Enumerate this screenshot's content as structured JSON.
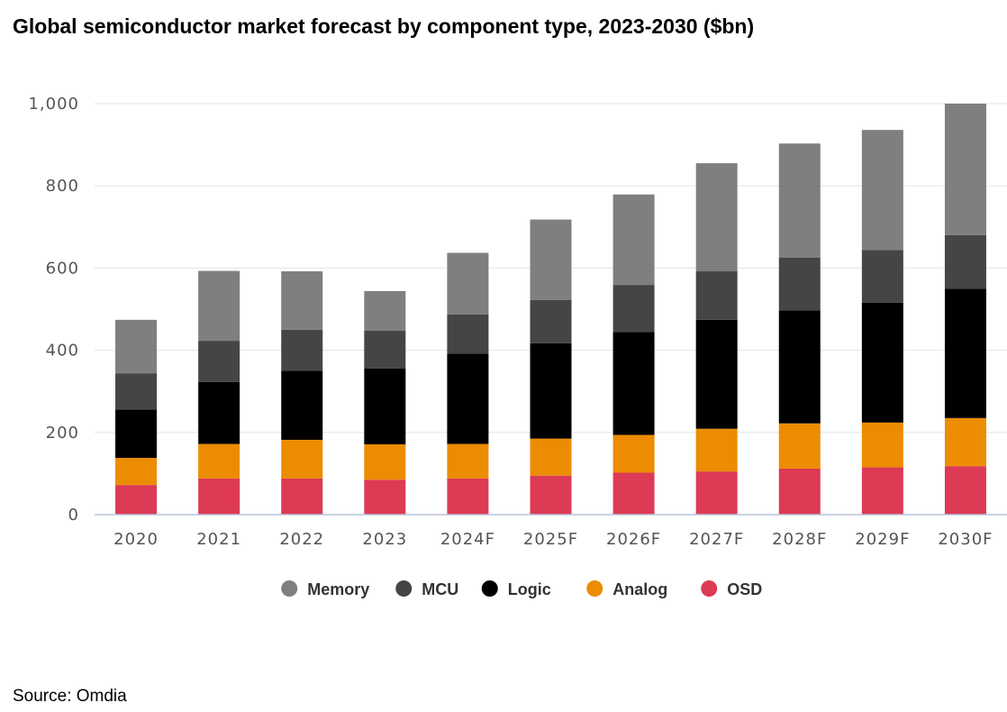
{
  "title": "Global semiconductor market forecast by component type, 2023-2030 ($bn)",
  "source": "Source: Omdia",
  "chart_data": {
    "type": "bar",
    "stacked": true,
    "title": "Global semiconductor market forecast by component type, 2023-2030 ($bn)",
    "xlabel": "",
    "ylabel": "",
    "ylim": [
      0,
      1000
    ],
    "yticks": [
      0,
      200,
      400,
      600,
      800,
      1000
    ],
    "ytick_labels": [
      "0",
      "200",
      "400",
      "600",
      "800",
      "1,000"
    ],
    "grid": true,
    "legend_position": "bottom-center",
    "categories": [
      "2020",
      "2021",
      "2022",
      "2023",
      "2024F",
      "2025F",
      "2026F",
      "2027F",
      "2028F",
      "2029F",
      "2030F"
    ],
    "series": [
      {
        "name": "OSD",
        "color": "#dc3a55",
        "values": [
          72,
          88,
          88,
          85,
          88,
          95,
          102,
          105,
          112,
          115,
          118
        ]
      },
      {
        "name": "Analog",
        "color": "#ec8c00",
        "values": [
          66,
          84,
          94,
          86,
          84,
          90,
          92,
          104,
          110,
          109,
          117
        ]
      },
      {
        "name": "Logic",
        "color": "#000000",
        "values": [
          118,
          151,
          168,
          185,
          220,
          232,
          250,
          265,
          275,
          292,
          315
        ]
      },
      {
        "name": "MCU",
        "color": "#454545",
        "values": [
          88,
          100,
          100,
          92,
          95,
          105,
          115,
          118,
          128,
          128,
          130
        ]
      },
      {
        "name": "Memory",
        "color": "#7f7f7f",
        "values": [
          130,
          170,
          142,
          96,
          150,
          196,
          220,
          263,
          278,
          292,
          320
        ]
      }
    ],
    "legend_order": [
      "Memory",
      "MCU",
      "Logic",
      "Analog",
      "OSD"
    ]
  }
}
